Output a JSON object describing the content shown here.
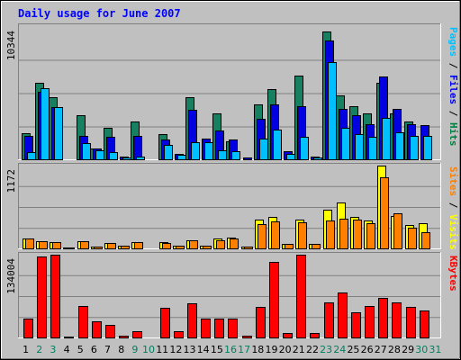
{
  "chart_data": {
    "type": "bar",
    "title": "Daily usage for June 2007",
    "categories": [
      "1",
      "2",
      "3",
      "4",
      "5",
      "6",
      "7",
      "8",
      "9",
      "10",
      "11",
      "12",
      "13",
      "14",
      "15",
      "16",
      "17",
      "18",
      "19",
      "20",
      "21",
      "22",
      "23",
      "24",
      "25",
      "26",
      "27",
      "28",
      "29",
      "30",
      "31"
    ],
    "weekend_days": [
      "2",
      "3",
      "9",
      "10",
      "16",
      "17",
      "23",
      "24",
      "30",
      "31"
    ],
    "panels": [
      {
        "name": "pages-files-hits",
        "ymax": 10344,
        "ymax_label": "10344",
        "legend": [
          {
            "text": "Pages",
            "color": "#00C0FF"
          },
          {
            "text": " / ",
            "color": "#000000"
          },
          {
            "text": "Files",
            "color": "#0000FF"
          },
          {
            "text": " / ",
            "color": "#000000"
          },
          {
            "text": "Hits",
            "color": "#008040"
          }
        ],
        "series": [
          {
            "name": "Hits",
            "color": "#178060",
            "values": [
              2100,
              6000,
              4900,
              0,
              3500,
              900,
              2500,
              0,
              3000,
              0,
              2000,
              0,
              4900,
              0,
              3600,
              1500,
              0,
              4300,
              5500,
              0,
              6600,
              0,
              10000,
              5000,
              4200,
              3600,
              6000,
              3600,
              3000,
              0,
              0
            ]
          },
          {
            "name": "Files",
            "color": "#0000E0",
            "values": [
              1900,
              5300,
              4100,
              80,
              1900,
              900,
              1800,
              300,
              1900,
              0,
              1600,
              500,
              3900,
              1700,
              2300,
              1600,
              200,
              3200,
              4300,
              700,
              4200,
              300,
              9300,
              4000,
              3500,
              2800,
              6500,
              4000,
              2800,
              2700,
              0
            ]
          },
          {
            "name": "Pages",
            "color": "#00C0FF",
            "values": [
              600,
              5600,
              4100,
              80,
              1300,
              800,
              600,
              200,
              300,
              0,
              1200,
              400,
              1400,
              1400,
              800,
              700,
              100,
              1700,
              2400,
              500,
              1800,
              200,
              7600,
              2500,
              2000,
              1800,
              3300,
              2200,
              1900,
              1900,
              0
            ]
          }
        ]
      },
      {
        "name": "sites-visits",
        "ymax": 1172,
        "ymax_label": "1172",
        "legend": [
          {
            "text": "Sites",
            "color": "#FF8000"
          },
          {
            "text": " / ",
            "color": "#000000"
          },
          {
            "text": "Visits",
            "color": "#FFFF00"
          }
        ],
        "series": [
          {
            "name": "Visits",
            "color": "#FFFF00",
            "values": [
              145,
              110,
              95,
              25,
              115,
              40,
              90,
              45,
              105,
              15,
              95,
              50,
              130,
              55,
              145,
              165,
              40,
              410,
              450,
              75,
              420,
              75,
              550,
              660,
              450,
              400,
              1172,
              470,
              340,
              360,
              0
            ]
          },
          {
            "name": "Sites",
            "color": "#FF8000",
            "values": [
              145,
              110,
              95,
              25,
              110,
              40,
              85,
              45,
              100,
              15,
              85,
              50,
              130,
              55,
              130,
              145,
              40,
              350,
              390,
              75,
              380,
              75,
              400,
              430,
              420,
              360,
              1010,
              500,
              300,
              240,
              0
            ]
          }
        ]
      },
      {
        "name": "kbytes",
        "ymax": 134004,
        "ymax_label": "134004",
        "legend": [
          {
            "text": "KBytes",
            "color": "#FF0000"
          }
        ],
        "series": [
          {
            "name": "KBytes",
            "color": "#FF0000",
            "values": [
              31000,
              131000,
              134004,
              3000,
              52000,
              28000,
              22000,
              5000,
              12000,
              1000,
              49000,
              12000,
              56000,
              32000,
              32000,
              31000,
              4000,
              51000,
              123000,
              8000,
              134004,
              8000,
              58000,
              73000,
              42000,
              52000,
              65000,
              57000,
              50000,
              44000,
              0
            ]
          }
        ]
      }
    ]
  }
}
